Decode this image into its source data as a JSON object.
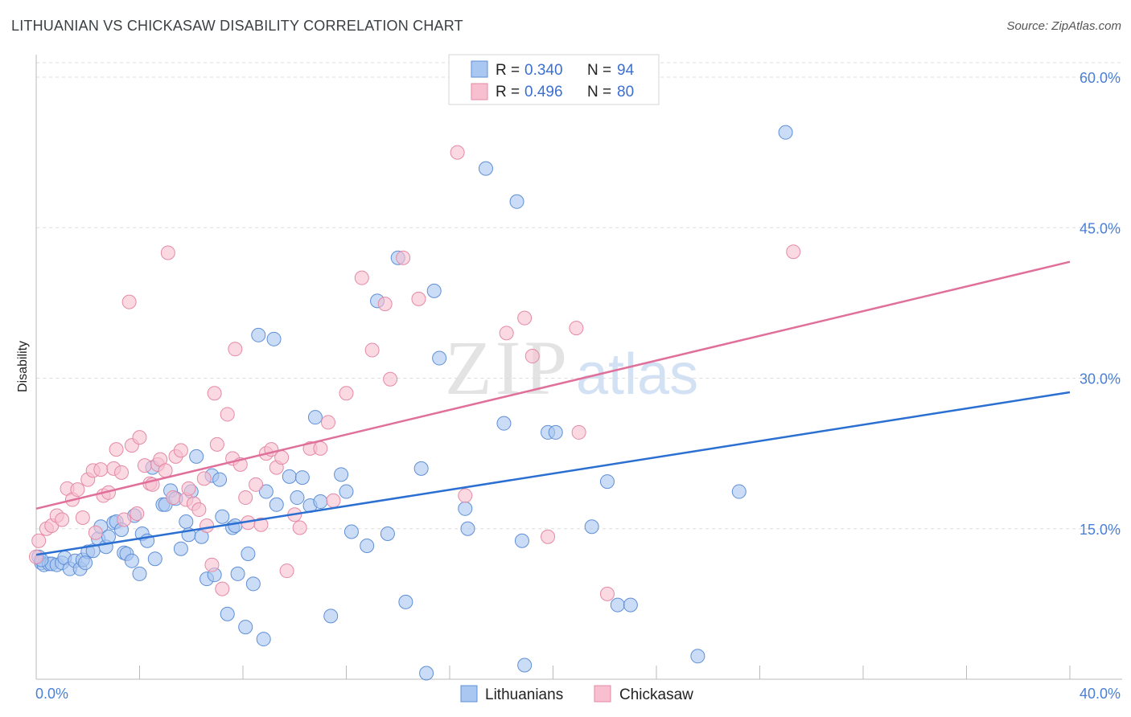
{
  "title": "LITHUANIAN VS CHICKASAW DISABILITY CORRELATION CHART",
  "source": "Source: ZipAtlas.com",
  "watermark": {
    "zip": "ZIP",
    "atlas": "atlas"
  },
  "legend": {
    "r_label": "R = ",
    "n_label": "N = ",
    "rows": [
      {
        "r": "0.340",
        "n": "94"
      },
      {
        "r": "0.496",
        "n": "80"
      }
    ]
  },
  "colors": {
    "lithuanians_fill": "#a9c7f0",
    "lithuanians_stroke": "#5f8fd6",
    "lithuanians_line": "#2a6fd1",
    "chickasaw_fill": "#f7bfd0",
    "chickasaw_stroke": "#e58aa6",
    "chickasaw_line": "#e0709a"
  },
  "chart_data": {
    "type": "scatter",
    "xlabel": "",
    "ylabel": "Disability",
    "xlim": [
      0,
      40
    ],
    "ylim": [
      0,
      60
    ],
    "x_tick_labels": [
      "0.0%",
      "40.0%"
    ],
    "y_ticks": [
      {
        "value": 15,
        "label": "15.0%"
      },
      {
        "value": 30,
        "label": "30.0%"
      },
      {
        "value": 45,
        "label": "45.0%"
      },
      {
        "value": 60,
        "label": "60.0%"
      }
    ],
    "grid": "horizontal-dashed",
    "legend_position": "top-center",
    "series": [
      {
        "name": "Lithuanians",
        "trend": {
          "x": [
            0,
            40
          ],
          "y": [
            12.4,
            28.6
          ]
        },
        "points": [
          [
            0.1,
            12.2
          ],
          [
            0.2,
            11.6
          ],
          [
            0.3,
            11.4
          ],
          [
            0.5,
            11.5
          ],
          [
            0.6,
            11.5
          ],
          [
            0.8,
            11.4
          ],
          [
            1.0,
            11.6
          ],
          [
            1.1,
            12.1
          ],
          [
            1.3,
            11.0
          ],
          [
            1.5,
            11.8
          ],
          [
            1.7,
            11.0
          ],
          [
            1.8,
            11.9
          ],
          [
            2.0,
            12.7
          ],
          [
            2.2,
            12.8
          ],
          [
            2.4,
            14.0
          ],
          [
            2.5,
            15.2
          ],
          [
            2.7,
            13.2
          ],
          [
            2.8,
            14.2
          ],
          [
            3.0,
            15.6
          ],
          [
            3.1,
            15.7
          ],
          [
            3.3,
            14.9
          ],
          [
            3.4,
            12.6
          ],
          [
            3.5,
            12.5
          ],
          [
            3.7,
            11.8
          ],
          [
            3.8,
            16.3
          ],
          [
            4.0,
            10.5
          ],
          [
            4.1,
            14.5
          ],
          [
            4.3,
            13.8
          ],
          [
            4.5,
            21.1
          ],
          [
            4.6,
            12.0
          ],
          [
            4.9,
            17.4
          ],
          [
            5.0,
            17.4
          ],
          [
            5.2,
            18.8
          ],
          [
            5.4,
            18.0
          ],
          [
            5.6,
            13.0
          ],
          [
            5.8,
            15.7
          ],
          [
            5.9,
            14.4
          ],
          [
            6.0,
            18.7
          ],
          [
            6.2,
            22.2
          ],
          [
            6.4,
            14.2
          ],
          [
            6.6,
            10.0
          ],
          [
            6.8,
            20.3
          ],
          [
            6.9,
            10.4
          ],
          [
            7.1,
            19.9
          ],
          [
            7.2,
            16.2
          ],
          [
            7.4,
            6.5
          ],
          [
            7.6,
            15.1
          ],
          [
            7.7,
            15.3
          ],
          [
            7.8,
            10.5
          ],
          [
            8.1,
            5.2
          ],
          [
            8.2,
            12.5
          ],
          [
            8.4,
            9.5
          ],
          [
            8.6,
            34.3
          ],
          [
            8.8,
            4.0
          ],
          [
            8.9,
            18.7
          ],
          [
            9.2,
            33.9
          ],
          [
            9.3,
            17.4
          ],
          [
            9.8,
            20.2
          ],
          [
            10.1,
            18.1
          ],
          [
            10.3,
            20.1
          ],
          [
            10.6,
            17.3
          ],
          [
            10.8,
            26.1
          ],
          [
            11.0,
            17.7
          ],
          [
            11.4,
            6.3
          ],
          [
            11.8,
            20.4
          ],
          [
            12.0,
            18.7
          ],
          [
            12.2,
            14.7
          ],
          [
            12.8,
            13.3
          ],
          [
            13.2,
            37.7
          ],
          [
            13.6,
            14.5
          ],
          [
            14.0,
            42.0
          ],
          [
            14.3,
            7.7
          ],
          [
            14.9,
            21.0
          ],
          [
            15.1,
            0.6
          ],
          [
            15.4,
            38.7
          ],
          [
            15.6,
            32.0
          ],
          [
            16.6,
            17.0
          ],
          [
            16.7,
            15.0
          ],
          [
            17.4,
            50.9
          ],
          [
            18.1,
            25.5
          ],
          [
            18.6,
            47.6
          ],
          [
            18.8,
            13.8
          ],
          [
            18.9,
            1.4
          ],
          [
            19.8,
            24.6
          ],
          [
            20.1,
            24.6
          ],
          [
            21.5,
            15.2
          ],
          [
            22.1,
            19.7
          ],
          [
            22.5,
            7.4
          ],
          [
            23.0,
            7.4
          ],
          [
            25.6,
            2.3
          ],
          [
            27.2,
            18.7
          ],
          [
            29.0,
            54.5
          ],
          [
            0.2,
            11.9
          ],
          [
            1.9,
            11.6
          ]
        ]
      },
      {
        "name": "Chickasaw",
        "trend": {
          "x": [
            0,
            40
          ],
          "y": [
            17.0,
            41.6
          ]
        },
        "points": [
          [
            0.0,
            12.2
          ],
          [
            0.1,
            13.8
          ],
          [
            0.4,
            15.0
          ],
          [
            0.6,
            15.3
          ],
          [
            0.8,
            16.3
          ],
          [
            1.0,
            15.9
          ],
          [
            1.2,
            19.0
          ],
          [
            1.4,
            17.9
          ],
          [
            1.6,
            18.9
          ],
          [
            1.8,
            16.1
          ],
          [
            2.0,
            19.9
          ],
          [
            2.2,
            20.8
          ],
          [
            2.3,
            14.6
          ],
          [
            2.5,
            20.9
          ],
          [
            2.6,
            18.3
          ],
          [
            2.8,
            18.6
          ],
          [
            3.0,
            21.0
          ],
          [
            3.1,
            22.9
          ],
          [
            3.3,
            20.6
          ],
          [
            3.4,
            15.9
          ],
          [
            3.6,
            37.6
          ],
          [
            3.7,
            23.3
          ],
          [
            3.9,
            16.5
          ],
          [
            4.0,
            24.1
          ],
          [
            4.2,
            21.3
          ],
          [
            4.4,
            19.5
          ],
          [
            4.5,
            19.4
          ],
          [
            4.7,
            21.4
          ],
          [
            4.8,
            21.9
          ],
          [
            5.0,
            20.8
          ],
          [
            5.1,
            42.5
          ],
          [
            5.3,
            18.1
          ],
          [
            5.4,
            22.2
          ],
          [
            5.6,
            22.8
          ],
          [
            5.8,
            17.9
          ],
          [
            5.9,
            19.0
          ],
          [
            6.1,
            17.5
          ],
          [
            6.3,
            16.9
          ],
          [
            6.5,
            20.0
          ],
          [
            6.6,
            15.3
          ],
          [
            6.8,
            11.4
          ],
          [
            6.9,
            28.5
          ],
          [
            7.0,
            23.4
          ],
          [
            7.2,
            9.0
          ],
          [
            7.4,
            26.4
          ],
          [
            7.6,
            22.0
          ],
          [
            7.7,
            32.9
          ],
          [
            7.9,
            21.4
          ],
          [
            8.1,
            18.1
          ],
          [
            8.2,
            15.6
          ],
          [
            8.5,
            19.4
          ],
          [
            8.7,
            15.4
          ],
          [
            8.9,
            22.5
          ],
          [
            9.1,
            22.9
          ],
          [
            9.3,
            21.1
          ],
          [
            9.5,
            22.1
          ],
          [
            9.7,
            10.8
          ],
          [
            10.0,
            16.4
          ],
          [
            10.2,
            15.1
          ],
          [
            10.6,
            23.0
          ],
          [
            11.0,
            23.0
          ],
          [
            11.3,
            25.6
          ],
          [
            11.5,
            17.8
          ],
          [
            12.0,
            28.5
          ],
          [
            12.6,
            40.0
          ],
          [
            13.0,
            32.8
          ],
          [
            13.5,
            37.4
          ],
          [
            13.7,
            29.9
          ],
          [
            14.2,
            42.0
          ],
          [
            14.8,
            37.9
          ],
          [
            16.3,
            52.5
          ],
          [
            16.6,
            18.3
          ],
          [
            18.2,
            34.5
          ],
          [
            18.9,
            36.0
          ],
          [
            19.2,
            32.2
          ],
          [
            19.8,
            14.2
          ],
          [
            20.9,
            35.0
          ],
          [
            21.0,
            24.6
          ],
          [
            22.1,
            8.5
          ],
          [
            29.3,
            42.6
          ]
        ]
      }
    ]
  }
}
